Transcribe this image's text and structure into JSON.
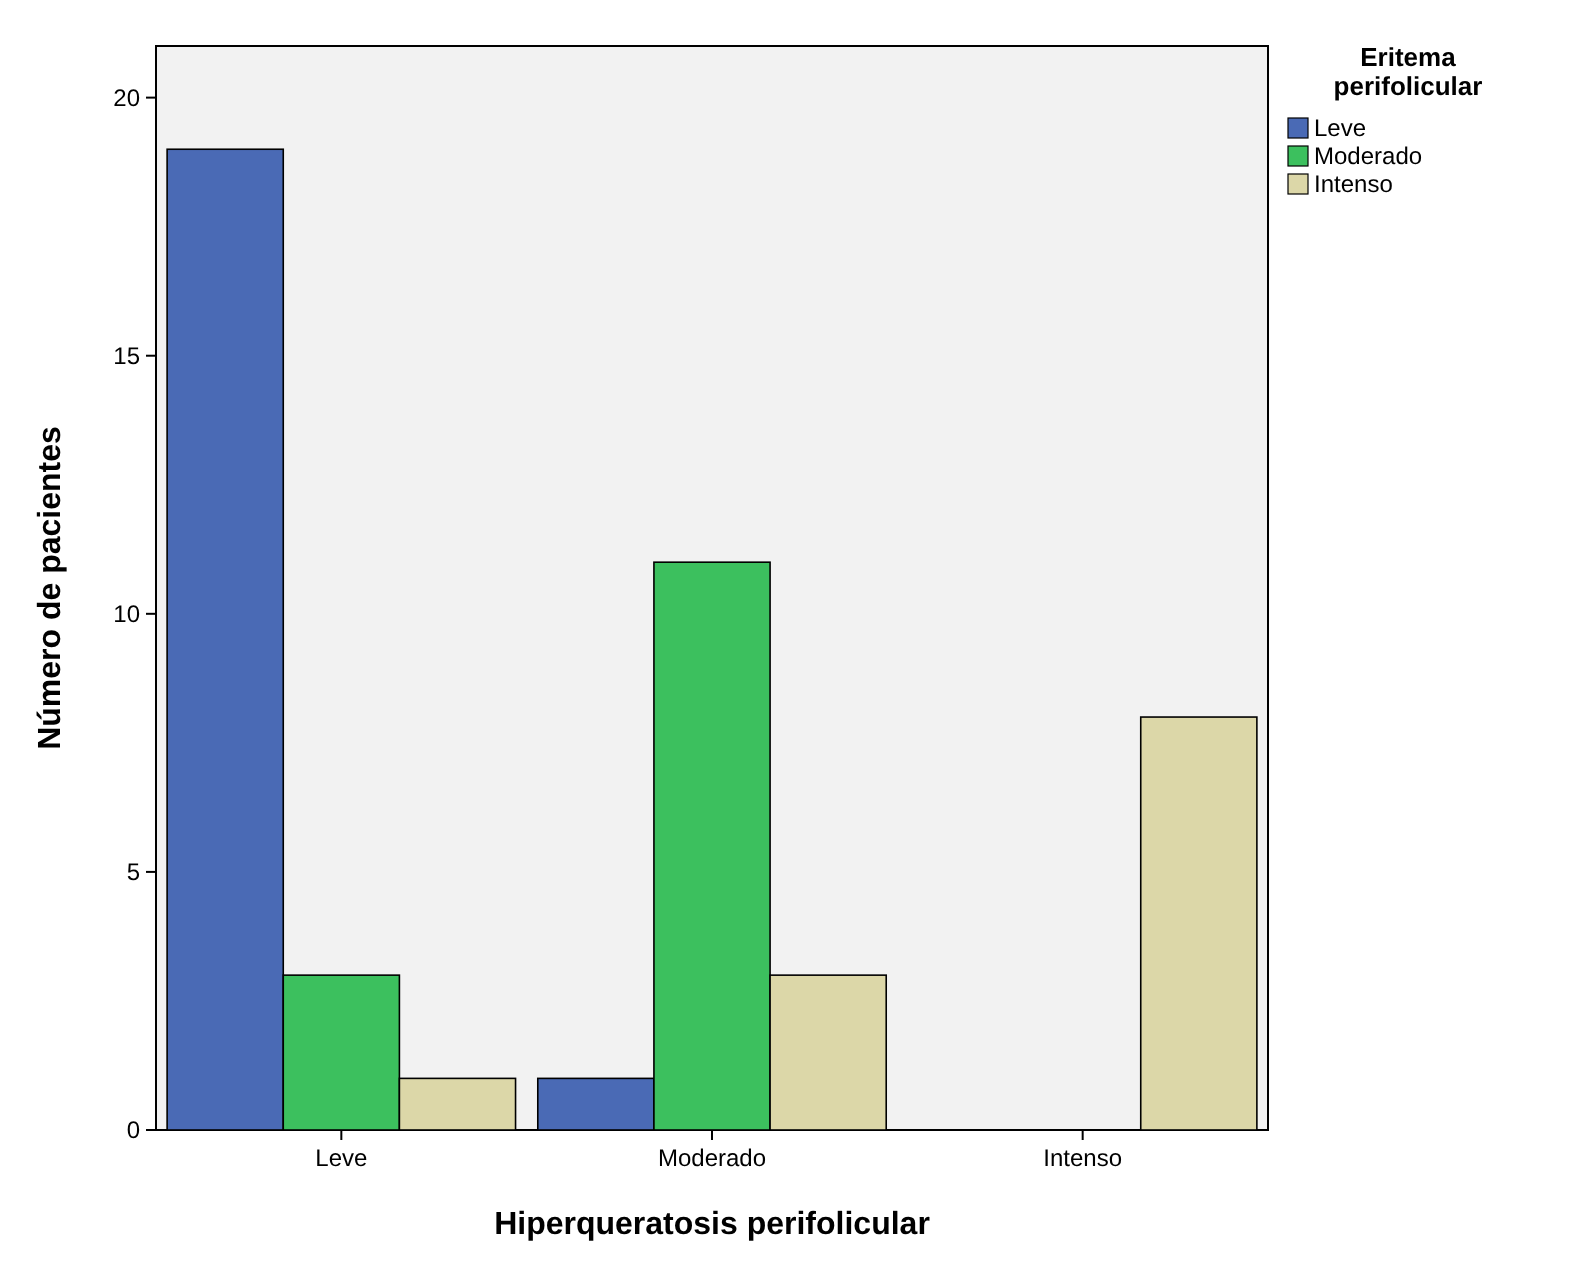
{
  "chart_data": {
    "type": "bar",
    "xlabel": "Hiperqueratosis perifolicular",
    "ylabel": "Número de pacientes",
    "legend_title": "Eritema perifolicular",
    "categories": [
      "Leve",
      "Moderado",
      "Intenso"
    ],
    "series": [
      {
        "name": "Leve",
        "color": "#4a6ab5",
        "values": [
          19,
          1,
          0
        ]
      },
      {
        "name": "Moderado",
        "color": "#3cc05e",
        "values": [
          3,
          11,
          0
        ]
      },
      {
        "name": "Intenso",
        "color": "#dcd7a8",
        "values": [
          1,
          3,
          8
        ]
      }
    ],
    "ylim": [
      0,
      21
    ],
    "yticks": [
      0,
      5,
      10,
      15,
      20
    ],
    "grid": false,
    "legend": "top right"
  }
}
